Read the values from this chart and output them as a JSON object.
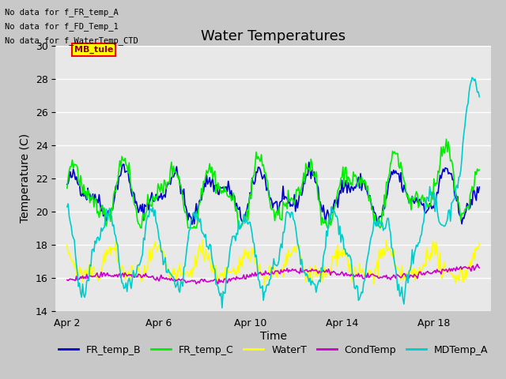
{
  "title": "Water Temperatures",
  "xlabel": "Time",
  "ylabel": "Temperature (C)",
  "ylim": [
    14,
    30
  ],
  "yticks": [
    14,
    16,
    18,
    20,
    22,
    24,
    26,
    28,
    30
  ],
  "fig_bg_color": "#c8c8c8",
  "plot_bg_color": "#e8e8e8",
  "text_annotations": [
    "No data for f_FR_temp_A",
    "No data for f_FD_Temp_1",
    "No data for f_WaterTemp_CTD"
  ],
  "mb_tule_label": "MB_tule",
  "legend_labels": [
    "FR_temp_B",
    "FR_temp_C",
    "WaterT",
    "CondTemp",
    "MDTemp_A"
  ],
  "line_colors": {
    "FR_temp_B": "#0000cc",
    "FR_temp_C": "#00ee00",
    "WaterT": "#ffff00",
    "CondTemp": "#cc00cc",
    "MDTemp_A": "#00cccc"
  },
  "xtick_labels": [
    "Apr 2",
    "Apr 6",
    "Apr 10",
    "Apr 14",
    "Apr 18"
  ],
  "xtick_positions": [
    2,
    6,
    10,
    14,
    18
  ],
  "xmin": 1.5,
  "xmax": 20.5,
  "title_fontsize": 13,
  "axis_fontsize": 10,
  "tick_fontsize": 9,
  "legend_fontsize": 9
}
